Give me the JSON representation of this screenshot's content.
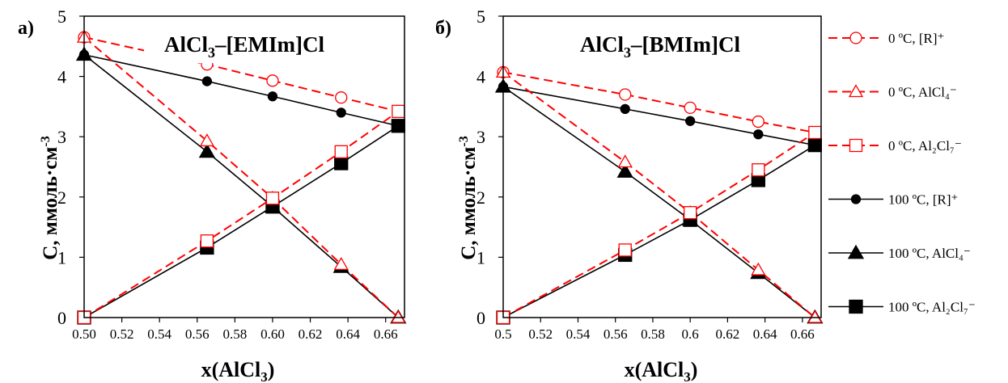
{
  "legend": [
    {
      "label": "0 ºC, [R]⁺",
      "color": "#ff0000",
      "dash": true,
      "marker": "circle-open"
    },
    {
      "label": "0 ºC, AlCl₄⁻",
      "color": "#ff0000",
      "dash": true,
      "marker": "triangle-open"
    },
    {
      "label": "0 ºC, Al₂Cl₇⁻",
      "color": "#ff0000",
      "dash": true,
      "marker": "square-open"
    },
    {
      "label": "100 ºC, [R]⁺",
      "color": "#000000",
      "dash": false,
      "marker": "circle-filled"
    },
    {
      "label": "100 ºC, AlCl₄⁻",
      "color": "#000000",
      "dash": false,
      "marker": "triangle-filled"
    },
    {
      "label": "100 ºC, Al₂Cl₇⁻",
      "color": "#000000",
      "dash": false,
      "marker": "square-filled"
    }
  ],
  "chart_data": [
    {
      "type": "line",
      "panel_label": "а)",
      "title_main": "AlCl",
      "title_sub": "3",
      "title_rest": "–[EMIm]Cl",
      "xlabel_main": "x(AlCl",
      "xlabel_sub": "3",
      "xlabel_rest": ")",
      "ylabel_main": "C, ммоль·см",
      "ylabel_sup": "-3",
      "xlim": [
        0.5,
        0.67
      ],
      "ylim": [
        0,
        5
      ],
      "xticks": [
        0.5,
        0.52,
        0.54,
        0.56,
        0.58,
        0.6,
        0.62,
        0.64,
        0.66
      ],
      "xtick_labels": [
        "0.50",
        "0.52",
        "0.54",
        "0.56",
        "0.58",
        "0.60",
        "0.62",
        "0.64",
        "0.66"
      ],
      "yticks": [
        0,
        1,
        2,
        3,
        4,
        5
      ],
      "grid": false,
      "series": [
        {
          "name": "0 ºC, [R]⁺",
          "x": [
            0.5,
            0.5652,
            0.6,
            0.6364,
            0.6667
          ],
          "y": [
            4.65,
            4.2,
            3.93,
            3.65,
            3.42
          ]
        },
        {
          "name": "0 ºC, AlCl₄⁻",
          "x": [
            0.5,
            0.5652,
            0.6,
            0.6364,
            0.6667
          ],
          "y": [
            4.65,
            2.93,
            1.98,
            0.88,
            0.0
          ]
        },
        {
          "name": "0 ºC, Al₂Cl₇⁻",
          "x": [
            0.5,
            0.5652,
            0.6,
            0.6364,
            0.6667
          ],
          "y": [
            0.0,
            1.27,
            1.98,
            2.75,
            3.42
          ]
        },
        {
          "name": "100 ºC, [R]⁺",
          "x": [
            0.5,
            0.5652,
            0.6,
            0.6364,
            0.6667
          ],
          "y": [
            4.36,
            3.92,
            3.67,
            3.4,
            3.18
          ]
        },
        {
          "name": "100 ºC, AlCl₄⁻",
          "x": [
            0.5,
            0.5652,
            0.6,
            0.6364,
            0.6667
          ],
          "y": [
            4.36,
            2.75,
            1.84,
            0.84,
            0.0
          ]
        },
        {
          "name": "100 ºC, Al₂Cl₇⁻",
          "x": [
            0.5,
            0.5652,
            0.6,
            0.6364,
            0.6667
          ],
          "y": [
            0.0,
            1.16,
            1.84,
            2.56,
            3.18
          ]
        }
      ]
    },
    {
      "type": "line",
      "panel_label": "б)",
      "title_main": "AlCl",
      "title_sub": "3",
      "title_rest": "–[BMIm]Cl",
      "xlabel_main": "x(AlCl",
      "xlabel_sub": "3",
      "xlabel_rest": ")",
      "ylabel_main": "C, ммоль·см",
      "ylabel_sup": "-3",
      "xlim": [
        0.5,
        0.67
      ],
      "ylim": [
        0,
        5
      ],
      "xticks": [
        0.5,
        0.52,
        0.54,
        0.56,
        0.58,
        0.6,
        0.62,
        0.64,
        0.66
      ],
      "xtick_labels": [
        "0.5",
        "0.52",
        "0.54",
        "0.56",
        "0.58",
        "0.6",
        "0.62",
        "0.64",
        "0.66"
      ],
      "yticks": [
        0,
        1,
        2,
        3,
        4,
        5
      ],
      "grid": false,
      "series": [
        {
          "name": "0 ºC, [R]⁺",
          "x": [
            0.5,
            0.5652,
            0.6,
            0.6364,
            0.6667
          ],
          "y": [
            4.07,
            3.7,
            3.48,
            3.25,
            3.07
          ]
        },
        {
          "name": "0 ºC, AlCl₄⁻",
          "x": [
            0.5,
            0.5652,
            0.6,
            0.6364,
            0.6667
          ],
          "y": [
            4.07,
            2.58,
            1.74,
            0.79,
            0.0
          ]
        },
        {
          "name": "0 ºC, Al₂Cl₇⁻",
          "x": [
            0.5,
            0.5652,
            0.6,
            0.6364,
            0.6667
          ],
          "y": [
            0.0,
            1.12,
            1.74,
            2.45,
            3.07
          ]
        },
        {
          "name": "100 ºC, [R]⁺",
          "x": [
            0.5,
            0.5652,
            0.6,
            0.6364,
            0.6667
          ],
          "y": [
            3.83,
            3.46,
            3.26,
            3.04,
            2.86
          ]
        },
        {
          "name": "100 ºC, AlCl₄⁻",
          "x": [
            0.5,
            0.5652,
            0.6,
            0.6364,
            0.6667
          ],
          "y": [
            3.83,
            2.42,
            1.62,
            0.74,
            0.0
          ]
        },
        {
          "name": "100 ºC, Al₂Cl₇⁻",
          "x": [
            0.5,
            0.5652,
            0.6,
            0.6364,
            0.6667
          ],
          "y": [
            0.0,
            1.04,
            1.62,
            2.28,
            2.86
          ]
        }
      ]
    }
  ]
}
